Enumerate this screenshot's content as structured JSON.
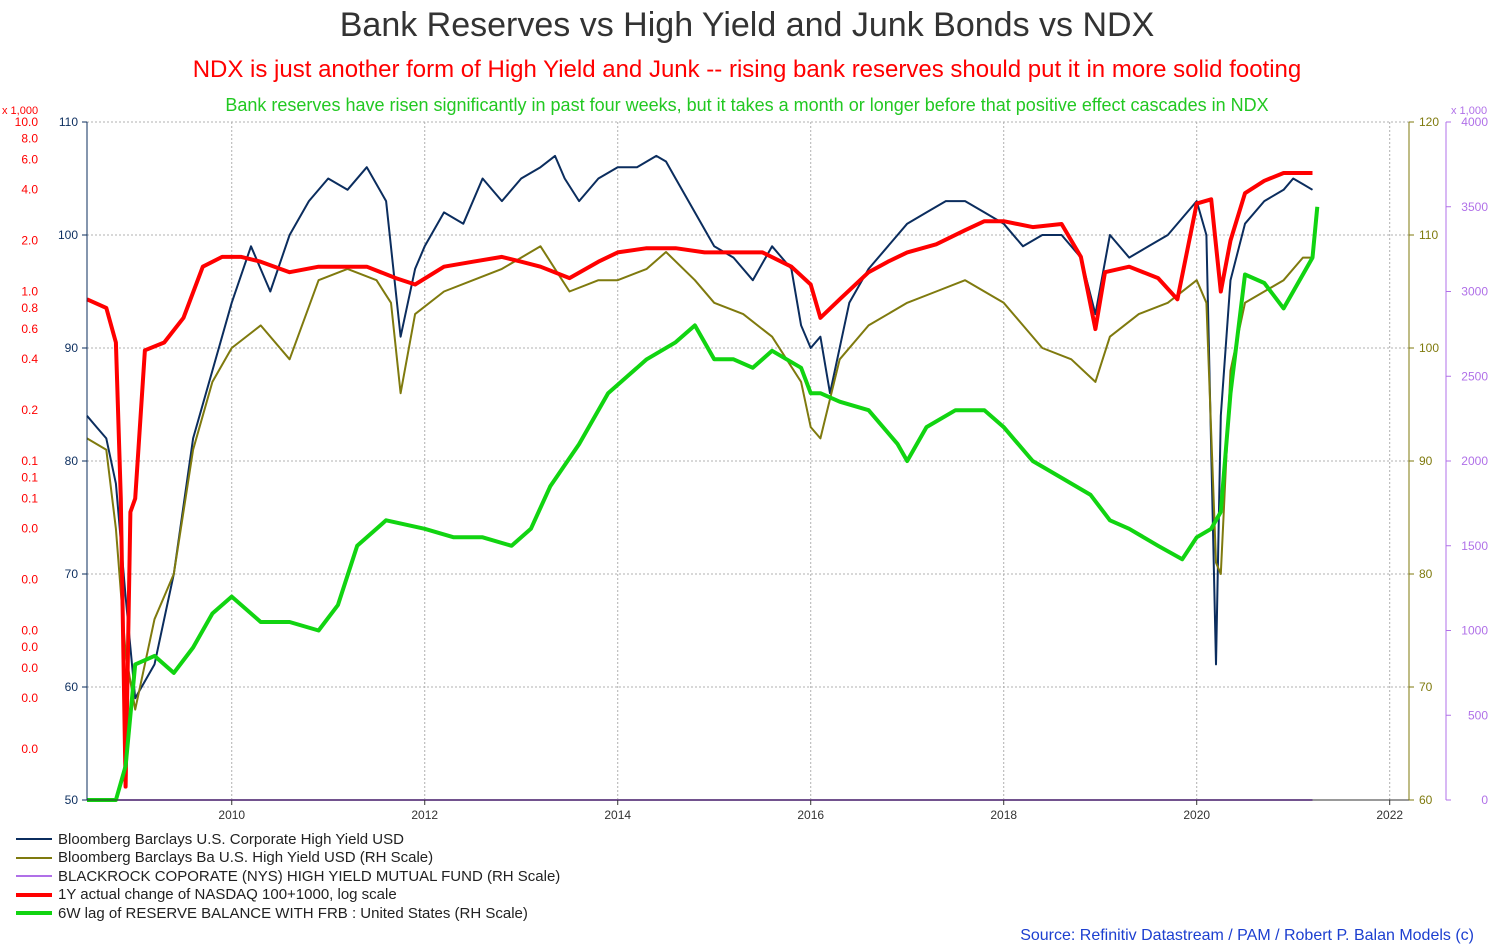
{
  "title": "Bank Reserves vs High Yield and Junk Bonds vs NDX",
  "subtitle": "NDX is just another form of High Yield and Junk -- rising bank reserves should put it in more solid footing",
  "note": "Bank reserves have risen significantly in past four weeks, but it takes a month or longer before that positive effect cascades in NDX",
  "source": "Source: Refinitiv Datastream / PAM /  Robert P. Balan Models (c)",
  "colors": {
    "hy": "#0b2d5e",
    "ba": "#7f7a0e",
    "blackrock": "#b070e8",
    "ndx": "#ff0000",
    "reserves": "#11d411",
    "grid": "#b0b0b0"
  },
  "legend": [
    {
      "label": "Bloomberg Barclays U.S. Corporate High Yield USD",
      "color": "#0b2d5e",
      "width": 2
    },
    {
      "label": "Bloomberg Barclays Ba U.S. High Yield USD (RH Scale)",
      "color": "#7f7a0e",
      "width": 2
    },
    {
      "label": "BLACKROCK COPORATE (NYS) HIGH YIELD MUTUAL FUND (RH Scale)",
      "color": "#b070e8",
      "width": 2
    },
    {
      "label": "1Y actual change of NASDAQ 100+1000, log scale",
      "color": "#ff0000",
      "width": 4
    },
    {
      "label": "6W lag of RESERVE BALANCE WITH FRB : United States (RH Scale)",
      "color": "#11d411",
      "width": 4
    }
  ],
  "chart_data": {
    "type": "line",
    "x_range": [
      2008.5,
      2022.2
    ],
    "x_ticks": [
      "2010",
      "2012",
      "2014",
      "2016",
      "2018",
      "2020",
      "2022"
    ],
    "axes": {
      "left_log": {
        "multiplier": "x 1,000",
        "range": [
          0.001,
          10.0
        ],
        "scale": "log",
        "tick_labels": [
          {
            "label": "10.0",
            "v": 10.0
          },
          {
            "label": "8.0",
            "v": 8.0
          },
          {
            "label": "6.0",
            "v": 6.0
          },
          {
            "label": "4.0",
            "v": 4.0
          },
          {
            "label": "2.0",
            "v": 2.0
          },
          {
            "label": "1.0",
            "v": 1.0
          },
          {
            "label": "0.8",
            "v": 0.8
          },
          {
            "label": "0.6",
            "v": 0.6
          },
          {
            "label": "0.4",
            "v": 0.4
          },
          {
            "label": "0.2",
            "v": 0.2
          },
          {
            "label": "0.1",
            "v": 0.1
          },
          {
            "label": "0.1",
            "v": 0.08
          },
          {
            "label": "0.1",
            "v": 0.06
          },
          {
            "label": "0.0",
            "v": 0.04
          },
          {
            "label": "0.0",
            "v": 0.02
          },
          {
            "label": "0.0",
            "v": 0.01
          },
          {
            "label": "0.0",
            "v": 0.008
          },
          {
            "label": "0.0",
            "v": 0.006
          },
          {
            "label": "0.0",
            "v": 0.004
          },
          {
            "label": "0.0",
            "v": 0.002
          }
        ]
      },
      "left": {
        "range": [
          50,
          110
        ],
        "ticks": [
          50,
          60,
          70,
          80,
          90,
          100,
          110
        ]
      },
      "right1": {
        "range": [
          60,
          120
        ],
        "ticks": [
          60,
          70,
          80,
          90,
          100,
          110,
          120
        ]
      },
      "right2": {
        "multiplier": "x 1,000",
        "range": [
          0,
          4000
        ],
        "ticks": [
          0,
          500,
          1000,
          1500,
          2000,
          2500,
          3000,
          3500,
          4000
        ]
      }
    },
    "series": [
      {
        "name": "Bloomberg Barclays U.S. Corporate High Yield USD",
        "axis": "left",
        "x": [
          2008.5,
          2008.6,
          2008.7,
          2008.8,
          2008.9,
          2009.0,
          2009.2,
          2009.4,
          2009.6,
          2009.8,
          2010.0,
          2010.2,
          2010.4,
          2010.6,
          2010.8,
          2011.0,
          2011.2,
          2011.4,
          2011.6,
          2011.75,
          2011.9,
          2012.0,
          2012.2,
          2012.4,
          2012.6,
          2012.8,
          2013.0,
          2013.2,
          2013.35,
          2013.45,
          2013.6,
          2013.8,
          2014.0,
          2014.2,
          2014.4,
          2014.5,
          2014.6,
          2014.8,
          2015.0,
          2015.2,
          2015.4,
          2015.6,
          2015.8,
          2015.9,
          2016.0,
          2016.1,
          2016.2,
          2016.4,
          2016.6,
          2016.8,
          2017.0,
          2017.2,
          2017.4,
          2017.6,
          2017.8,
          2018.0,
          2018.2,
          2018.4,
          2018.6,
          2018.8,
          2018.95,
          2019.1,
          2019.3,
          2019.5,
          2019.7,
          2019.9,
          2020.0,
          2020.1,
          2020.2,
          2020.25,
          2020.35,
          2020.5,
          2020.7,
          2020.9,
          2021.0,
          2021.1,
          2021.2
        ],
        "values": [
          84,
          83,
          82,
          78,
          68,
          59,
          62,
          70,
          82,
          88,
          94,
          99,
          95,
          100,
          103,
          105,
          104,
          106,
          103,
          91,
          97,
          99,
          102,
          101,
          105,
          103,
          105,
          106,
          107,
          105,
          103,
          105,
          106,
          106,
          107,
          106.5,
          105,
          102,
          99,
          98,
          96,
          99,
          97,
          92,
          90,
          91,
          86,
          94,
          97,
          99,
          101,
          102,
          103,
          103,
          102,
          101,
          99,
          100,
          100,
          98,
          93,
          100,
          98,
          99,
          100,
          102,
          103,
          100,
          62,
          84,
          96,
          101,
          103,
          104,
          105,
          104.5,
          104
        ]
      },
      {
        "name": "Bloomberg Barclays Ba U.S. High Yield USD (RH Scale)",
        "axis": "right1",
        "x": [
          2008.5,
          2008.7,
          2008.8,
          2008.9,
          2009.0,
          2009.2,
          2009.4,
          2009.6,
          2009.8,
          2010.0,
          2010.3,
          2010.6,
          2010.9,
          2011.2,
          2011.5,
          2011.65,
          2011.75,
          2011.9,
          2012.2,
          2012.5,
          2012.8,
          2013.0,
          2013.2,
          2013.35,
          2013.5,
          2013.8,
          2014.0,
          2014.3,
          2014.5,
          2014.8,
          2015.0,
          2015.3,
          2015.6,
          2015.9,
          2016.0,
          2016.1,
          2016.3,
          2016.6,
          2017.0,
          2017.3,
          2017.6,
          2017.8,
          2018.0,
          2018.2,
          2018.4,
          2018.7,
          2018.95,
          2019.1,
          2019.4,
          2019.7,
          2020.0,
          2020.1,
          2020.2,
          2020.25,
          2020.35,
          2020.5,
          2020.7,
          2020.9,
          2021.1,
          2021.2
        ],
        "values": [
          92,
          91,
          84,
          73,
          68,
          76,
          80,
          91,
          97,
          100,
          102,
          99,
          106,
          107,
          106,
          104,
          96,
          103,
          105,
          106,
          107,
          108,
          109,
          107,
          105,
          106,
          106,
          107,
          108.5,
          106,
          104,
          103,
          101,
          97,
          93,
          92,
          99,
          102,
          104,
          105,
          106,
          105,
          104,
          102,
          100,
          99,
          97,
          101,
          103,
          104,
          106,
          104,
          81,
          80,
          98,
          104,
          105,
          106,
          108,
          108
        ]
      },
      {
        "name": "BLACKROCK COPORATE (NYS) HIGH YIELD MUTUAL FUND (RH Scale)",
        "axis": "right2",
        "x": [
          2008.5,
          2021.2
        ],
        "values": [
          0,
          0
        ]
      },
      {
        "name": "1Y actual change of NASDAQ 100+1000, log scale",
        "axis": "left_log",
        "x": [
          2008.5,
          2008.7,
          2008.8,
          2008.85,
          2008.9,
          2008.95,
          2009.0,
          2009.1,
          2009.3,
          2009.5,
          2009.7,
          2009.9,
          2010.1,
          2010.3,
          2010.6,
          2010.9,
          2011.2,
          2011.4,
          2011.7,
          2011.9,
          2012.2,
          2012.5,
          2012.8,
          2013.0,
          2013.2,
          2013.5,
          2013.8,
          2014.0,
          2014.3,
          2014.6,
          2014.9,
          2015.2,
          2015.5,
          2015.8,
          2016.0,
          2016.1,
          2016.3,
          2016.6,
          2016.8,
          2017.0,
          2017.3,
          2017.6,
          2017.8,
          2018.0,
          2018.3,
          2018.6,
          2018.8,
          2018.95,
          2019.05,
          2019.3,
          2019.6,
          2019.8,
          2020.0,
          2020.15,
          2020.25,
          2020.35,
          2020.5,
          2020.7,
          2020.9,
          2021.0,
          2021.2
        ],
        "values": [
          0.9,
          0.8,
          0.5,
          0.06,
          0.0012,
          0.05,
          0.06,
          0.45,
          0.5,
          0.7,
          1.4,
          1.6,
          1.6,
          1.5,
          1.3,
          1.4,
          1.4,
          1.4,
          1.2,
          1.1,
          1.4,
          1.5,
          1.6,
          1.5,
          1.4,
          1.2,
          1.5,
          1.7,
          1.8,
          1.8,
          1.7,
          1.7,
          1.7,
          1.4,
          1.1,
          0.7,
          0.9,
          1.3,
          1.5,
          1.7,
          1.9,
          2.3,
          2.6,
          2.6,
          2.4,
          2.5,
          1.6,
          0.6,
          1.3,
          1.4,
          1.2,
          0.9,
          3.3,
          3.5,
          1.0,
          2.0,
          3.8,
          4.5,
          5.0,
          5.0,
          5.0
        ]
      },
      {
        "name": "6W lag of RESERVE BALANCE WITH FRB : United States (RH Scale)",
        "axis": "right2",
        "x": [
          2008.5,
          2008.8,
          2008.9,
          2009.0,
          2009.2,
          2009.4,
          2009.6,
          2009.8,
          2010.0,
          2010.3,
          2010.6,
          2010.9,
          2011.1,
          2011.3,
          2011.6,
          2012.0,
          2012.3,
          2012.6,
          2012.9,
          2013.1,
          2013.3,
          2013.6,
          2013.9,
          2014.1,
          2014.3,
          2014.6,
          2014.8,
          2015.0,
          2015.2,
          2015.4,
          2015.6,
          2015.9,
          2016.0,
          2016.1,
          2016.3,
          2016.6,
          2016.9,
          2017.0,
          2017.2,
          2017.5,
          2017.8,
          2018.0,
          2018.3,
          2018.6,
          2018.9,
          2019.1,
          2019.3,
          2019.6,
          2019.85,
          2020.0,
          2020.15,
          2020.25,
          2020.35,
          2020.5,
          2020.7,
          2020.9,
          2021.0,
          2021.1,
          2021.2,
          2021.25
        ],
        "values": [
          0,
          0,
          200,
          800,
          850,
          750,
          900,
          1100,
          1200,
          1050,
          1050,
          1000,
          1150,
          1500,
          1650,
          1600,
          1550,
          1550,
          1500,
          1600,
          1850,
          2100,
          2400,
          2500,
          2600,
          2700,
          2800,
          2600,
          2600,
          2550,
          2650,
          2550,
          2400,
          2400,
          2350,
          2300,
          2100,
          2000,
          2200,
          2300,
          2300,
          2200,
          2000,
          1900,
          1800,
          1650,
          1600,
          1500,
          1420,
          1550,
          1600,
          1700,
          2400,
          3100,
          3050,
          2900,
          3000,
          3100,
          3200,
          3500
        ]
      }
    ]
  }
}
